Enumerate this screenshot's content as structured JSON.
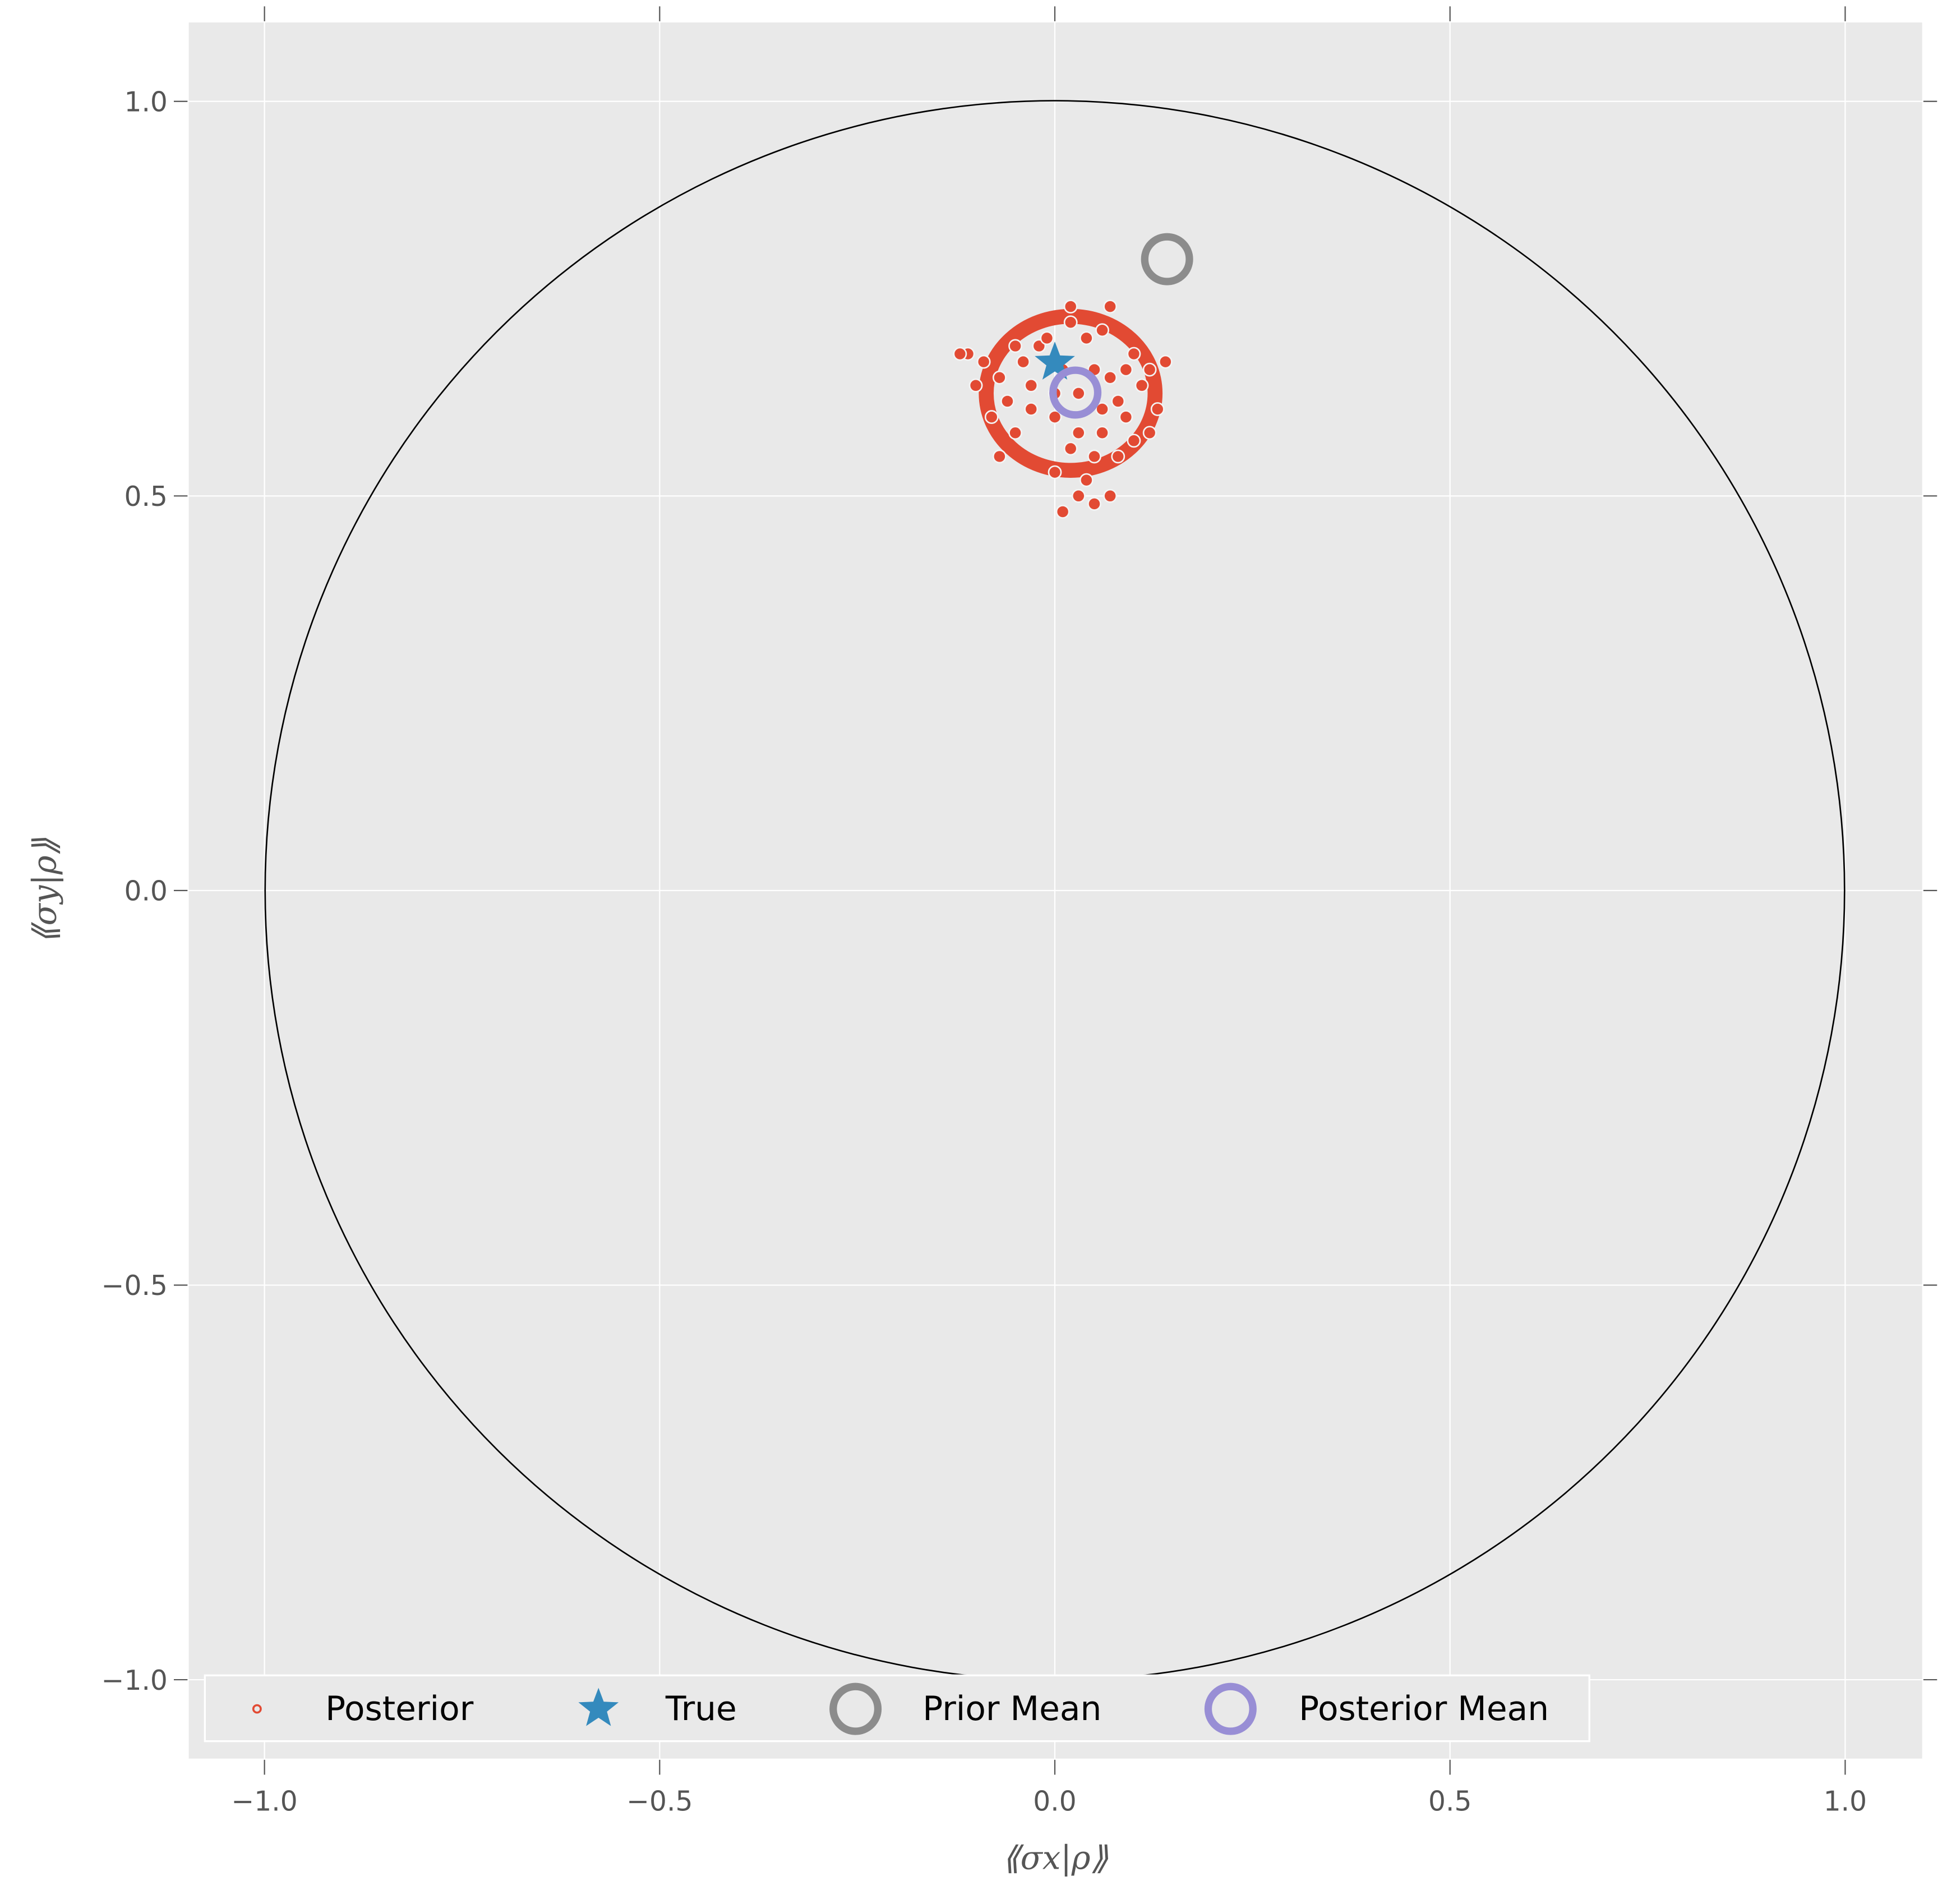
{
  "chart_data": {
    "type": "scatter",
    "xlabel": "⟪σx|ρ⟫",
    "ylabel": "⟪σy|ρ⟫",
    "xlim": [
      -1.1,
      1.1
    ],
    "ylim": [
      -1.1,
      1.1
    ],
    "xticks": [
      "−1.0",
      "−0.5",
      "0.0",
      "0.5",
      "1.0"
    ],
    "yticks": [
      "1.0",
      "0.5",
      "0.0",
      "−0.5",
      "−1.0"
    ],
    "tick_values": [
      -1.0,
      -0.5,
      0.0,
      0.5,
      1.0
    ],
    "grid": true,
    "legend_placement": "bottom",
    "unit_circle": {
      "center": [
        0,
        0
      ],
      "radius": 1
    },
    "series": [
      {
        "name": "Posterior",
        "marker": "circle",
        "color": "#E24A33",
        "points": [
          [
            0.03,
            0.63
          ],
          [
            0.05,
            0.66
          ],
          [
            0.0,
            0.6
          ],
          [
            -0.03,
            0.64
          ],
          [
            0.08,
            0.62
          ],
          [
            0.1,
            0.68
          ],
          [
            -0.05,
            0.58
          ],
          [
            0.02,
            0.56
          ],
          [
            0.06,
            0.58
          ],
          [
            0.09,
            0.6
          ],
          [
            -0.02,
            0.69
          ],
          [
            0.04,
            0.7
          ],
          [
            0.07,
            0.65
          ],
          [
            0.11,
            0.64
          ],
          [
            -0.06,
            0.62
          ],
          [
            -0.04,
            0.67
          ],
          [
            0.01,
            0.66
          ],
          [
            0.03,
            0.58
          ],
          [
            0.05,
            0.55
          ],
          [
            0.12,
            0.66
          ],
          [
            -0.07,
            0.65
          ],
          [
            -0.08,
            0.6
          ],
          [
            0.0,
            0.53
          ],
          [
            0.04,
            0.52
          ],
          [
            0.08,
            0.55
          ],
          [
            0.1,
            0.57
          ],
          [
            0.06,
            0.71
          ],
          [
            0.02,
            0.72
          ],
          [
            -0.01,
            0.7
          ],
          [
            0.13,
            0.61
          ],
          [
            -0.09,
            0.67
          ],
          [
            -0.1,
            0.64
          ],
          [
            -0.11,
            0.68
          ],
          [
            -0.07,
            0.55
          ],
          [
            0.03,
            0.5
          ],
          [
            0.05,
            0.49
          ],
          [
            0.01,
            0.48
          ],
          [
            0.07,
            0.5
          ],
          [
            -0.12,
            0.68
          ],
          [
            0.14,
            0.67
          ],
          [
            0.07,
            0.74
          ],
          [
            0.02,
            0.74
          ],
          [
            -0.03,
            0.61
          ],
          [
            0.09,
            0.66
          ],
          [
            0.0,
            0.63
          ],
          [
            0.06,
            0.61
          ],
          [
            -0.05,
            0.69
          ],
          [
            0.12,
            0.58
          ]
        ]
      },
      {
        "name": "True",
        "marker": "star",
        "color": "#348ABD",
        "points": [
          [
            0.0,
            0.669
          ]
        ]
      },
      {
        "name": "Prior Mean",
        "marker": "ring",
        "color": "#8C8C8C",
        "points": [
          [
            0.142,
            0.8
          ]
        ]
      },
      {
        "name": "Posterior Mean",
        "marker": "ring",
        "color": "#988ED5",
        "points": [
          [
            0.026,
            0.631
          ]
        ]
      }
    ],
    "colors": {
      "background": "#E9E9E9",
      "grid": "#FFFFFF"
    }
  }
}
